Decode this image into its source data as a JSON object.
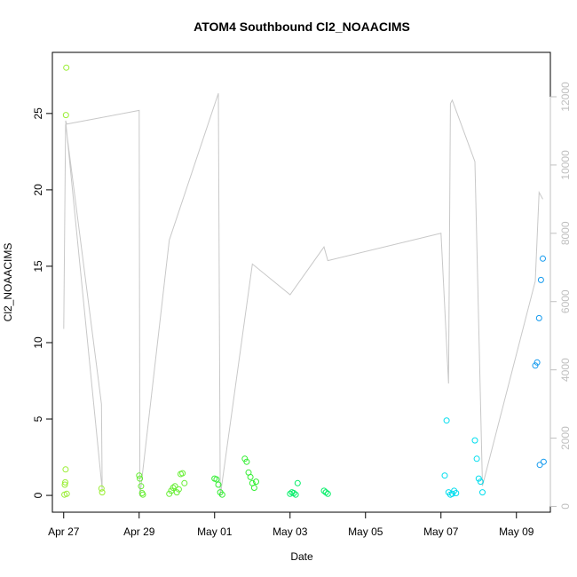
{
  "chart_data": {
    "type": "scatter",
    "title": "ATOM4 Southbound Cl2_NOAACIMS",
    "xlabel": "Date",
    "ylabel": "Cl2_NOAACIMS",
    "x_ticks": [
      "Apr 27",
      "Apr 29",
      "May 01",
      "May 03",
      "May 05",
      "May 07",
      "May 09"
    ],
    "y_ticks": [
      0,
      5,
      10,
      15,
      20,
      25
    ],
    "y_right_ticks": [
      0,
      2000,
      4000,
      6000,
      8000,
      10000,
      12000
    ],
    "xlim": [
      -0.3,
      12.9
    ],
    "ylim": [
      -1.1,
      29.0
    ],
    "y_right_lim": [
      -170,
      13300
    ],
    "grid": false,
    "legend": "none",
    "colors": {
      "altitude_line": "#c8c8c8",
      "right_axis": "#c0c0c0",
      "points_apr27": "#99ee33",
      "points_apr29": "#66ee33",
      "points_may01": "#33ee33",
      "points_may03": "#00ee66",
      "points_may06": "#00ddee",
      "points_may07": "#00ddee",
      "points_may09": "#1199ee"
    },
    "series": [
      {
        "color_key": "points_apr27",
        "x": [
          0.02,
          0.03,
          0.04,
          0.05,
          0.06,
          0.07,
          0.08,
          1.0,
          1.02
        ],
        "y": [
          0.05,
          0.7,
          0.85,
          1.7,
          24.9,
          28.0,
          0.1,
          0.45,
          0.2
        ]
      },
      {
        "color_key": "points_apr29",
        "x": [
          2.0,
          2.02,
          2.05,
          2.08,
          2.1,
          2.8,
          2.85,
          2.9,
          2.95,
          3.0,
          3.05,
          3.1,
          3.15,
          3.2
        ],
        "y": [
          1.3,
          1.1,
          0.6,
          0.15,
          0.05,
          0.1,
          0.3,
          0.5,
          0.6,
          0.2,
          0.4,
          1.4,
          1.45,
          0.8
        ]
      },
      {
        "color_key": "points_may01",
        "x": [
          4.0,
          4.05,
          4.1,
          4.15,
          4.2,
          4.8,
          4.85,
          4.9,
          4.95,
          5.0,
          5.05,
          5.1
        ],
        "y": [
          1.1,
          1.05,
          0.7,
          0.2,
          0.05,
          2.4,
          2.2,
          1.5,
          1.2,
          0.8,
          0.5,
          0.9
        ]
      },
      {
        "color_key": "points_may03",
        "x": [
          6.0,
          6.05,
          6.1,
          6.15,
          6.2,
          6.9,
          6.95,
          7.0
        ],
        "y": [
          0.1,
          0.2,
          0.15,
          0.05,
          0.8,
          0.3,
          0.2,
          0.1
        ]
      },
      {
        "color_key": "points_may06",
        "x": [
          10.1,
          10.15,
          10.2,
          10.25,
          10.3,
          10.35,
          10.4
        ],
        "y": [
          1.3,
          4.9,
          0.2,
          0.05,
          0.1,
          0.3,
          0.15
        ]
      },
      {
        "color_key": "points_may07",
        "x": [
          10.9,
          10.95,
          11.0,
          11.05,
          11.1
        ],
        "y": [
          3.6,
          2.4,
          1.1,
          0.9,
          0.2
        ]
      },
      {
        "color_key": "points_may09",
        "x": [
          12.5,
          12.55,
          12.6,
          12.62,
          12.65,
          12.7,
          12.72
        ],
        "y": [
          8.5,
          8.7,
          11.6,
          2.0,
          14.1,
          15.5,
          2.2
        ]
      }
    ],
    "altitude_track": {
      "axis": "right",
      "x": [
        0.0,
        0.05,
        1.0,
        1.02,
        0.05,
        0.08,
        2.0,
        2.02,
        2.8,
        4.1,
        4.15,
        5.0,
        6.0,
        6.9,
        7.0,
        10.0,
        10.2,
        10.25,
        10.3,
        10.9,
        11.1,
        12.5,
        12.6,
        12.7
      ],
      "y": [
        5200,
        11200,
        3000,
        500,
        11300,
        11200,
        11600,
        300,
        7800,
        12100,
        300,
        7100,
        6200,
        7600,
        7200,
        8000,
        3600,
        11800,
        11900,
        10100,
        600,
        6600,
        9200,
        9000
      ]
    }
  }
}
